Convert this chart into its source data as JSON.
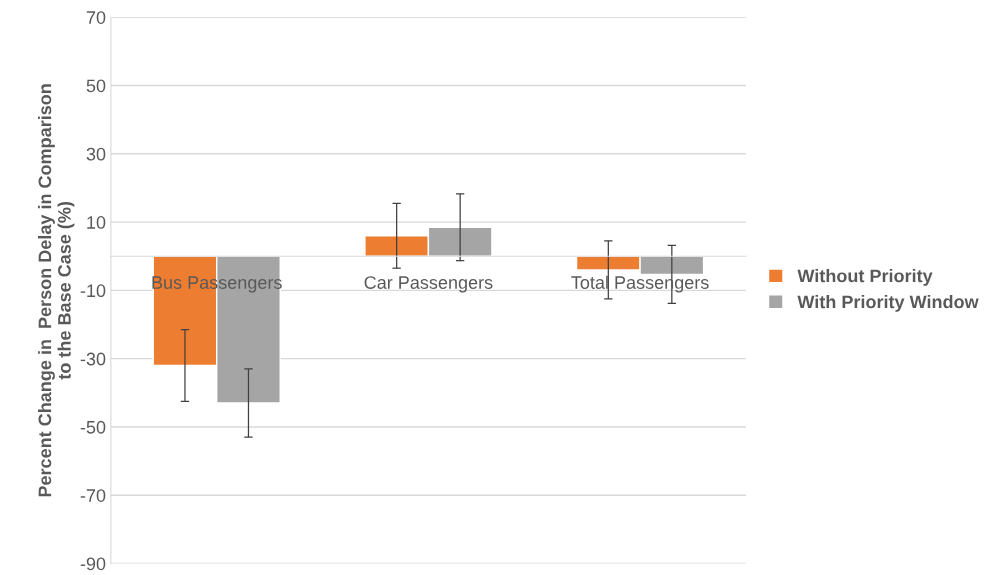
{
  "chart_data": {
    "type": "bar",
    "ylabel": "Percent Change in  Person Delay in Comparison\nto the Base Case (%)",
    "categories": [
      "Bus Passengers",
      "Car Passengers",
      "Total Passengers"
    ],
    "series": [
      {
        "name": "Without Priority",
        "color": "#ed7d31",
        "values": [
          -32,
          6,
          -4
        ],
        "errors": [
          10.5,
          9.5,
          8.5
        ]
      },
      {
        "name": "With Priority Window",
        "color": "#a5a5a5",
        "values": [
          -43,
          8.5,
          -5.3
        ],
        "errors": [
          10,
          9.8,
          8.5
        ]
      }
    ],
    "ylim": [
      -90,
      70
    ],
    "yticks": [
      -90,
      -70,
      -50,
      -30,
      -10,
      10,
      30,
      50,
      70
    ],
    "grid": "y",
    "legend": "right"
  }
}
